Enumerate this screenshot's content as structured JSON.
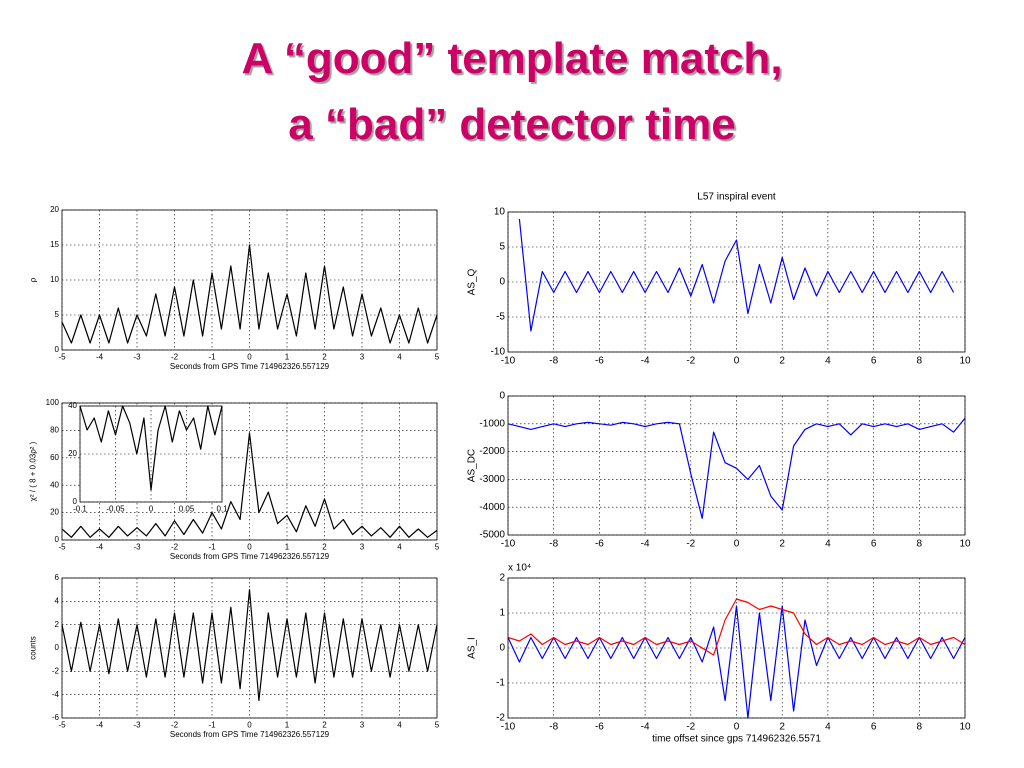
{
  "title": [
    "A “good” template match,",
    "a “bad” detector time"
  ],
  "chart_data": [
    {
      "type": "line",
      "xlabel": "Seconds from GPS Time 714962326.557129",
      "ylabel": "ρ",
      "xlim": [
        -5,
        5
      ],
      "xticks": [
        -5,
        -4,
        -3,
        -2,
        -1,
        0,
        1,
        2,
        3,
        4,
        5
      ],
      "ylim": [
        0,
        20
      ],
      "yticks": [
        0,
        5,
        10,
        15,
        20
      ],
      "grid": true,
      "x": [
        -5,
        -4.75,
        -4.5,
        -4.25,
        -4,
        -3.75,
        -3.5,
        -3.25,
        -3,
        -2.75,
        -2.5,
        -2.25,
        -2,
        -1.75,
        -1.5,
        -1.25,
        -1,
        -0.75,
        -0.5,
        -0.25,
        0,
        0.25,
        0.5,
        0.75,
        1,
        1.25,
        1.5,
        1.75,
        2,
        2.25,
        2.5,
        2.75,
        3,
        3.25,
        3.5,
        3.75,
        4,
        4.25,
        4.5,
        4.75,
        5
      ],
      "series": [
        {
          "color": "#000000",
          "values": [
            4,
            1,
            5,
            1,
            5,
            1,
            6,
            1,
            5,
            2,
            8,
            2,
            9,
            2,
            10,
            2,
            11,
            3,
            12,
            3,
            15,
            3,
            11,
            3,
            8,
            2,
            11,
            3,
            12,
            3,
            9,
            2,
            8,
            2,
            6,
            1,
            5,
            1,
            6,
            1,
            5
          ]
        }
      ]
    },
    {
      "type": "line",
      "xlabel": "Seconds from GPS Time 714962326.557129",
      "ylabel": "χ² / ( 8 + 0.03ρ² )",
      "xlim": [
        -5,
        5
      ],
      "xticks": [
        -5,
        -4,
        -3,
        -2,
        -1,
        0,
        1,
        2,
        3,
        4,
        5
      ],
      "ylim": [
        0,
        100
      ],
      "yticks": [
        0,
        20,
        40,
        60,
        80,
        100
      ],
      "grid": true,
      "x": [
        -5,
        -4.75,
        -4.5,
        -4.25,
        -4,
        -3.75,
        -3.5,
        -3.25,
        -3,
        -2.75,
        -2.5,
        -2.25,
        -2,
        -1.75,
        -1.5,
        -1.25,
        -1,
        -0.75,
        -0.5,
        -0.25,
        0,
        0.25,
        0.5,
        0.75,
        1,
        1.25,
        1.5,
        1.75,
        2,
        2.25,
        2.5,
        2.75,
        3,
        3.25,
        3.5,
        3.75,
        4,
        4.25,
        4.5,
        4.75,
        5
      ],
      "series": [
        {
          "color": "#000000",
          "values": [
            8,
            2,
            10,
            2,
            8,
            2,
            10,
            3,
            9,
            3,
            12,
            3,
            14,
            4,
            15,
            5,
            20,
            8,
            28,
            15,
            78,
            20,
            35,
            12,
            18,
            6,
            25,
            10,
            30,
            8,
            15,
            4,
            10,
            3,
            9,
            2,
            10,
            2,
            8,
            2,
            7
          ]
        }
      ]
    },
    {
      "type": "line",
      "xlim": [
        -0.1,
        0.1
      ],
      "xticks": [
        -0.1,
        -0.05,
        0,
        0.05,
        0.1
      ],
      "ylim": [
        0,
        40
      ],
      "yticks": [
        0,
        20,
        40
      ],
      "grid": true,
      "x": [
        -0.1,
        -0.09,
        -0.08,
        -0.07,
        -0.06,
        -0.05,
        -0.04,
        -0.03,
        -0.02,
        -0.01,
        0,
        0.01,
        0.02,
        0.03,
        0.04,
        0.05,
        0.06,
        0.07,
        0.08,
        0.09,
        0.1
      ],
      "series": [
        {
          "color": "#000000",
          "values": [
            40,
            30,
            35,
            25,
            38,
            28,
            40,
            33,
            20,
            35,
            5,
            30,
            40,
            25,
            38,
            30,
            35,
            22,
            40,
            28,
            40
          ]
        }
      ]
    },
    {
      "type": "line",
      "xlabel": "Seconds from GPS Time 714962326.557129",
      "ylabel": "counts",
      "xlim": [
        -5,
        5
      ],
      "xticks": [
        -5,
        -4,
        -3,
        -2,
        -1,
        0,
        1,
        2,
        3,
        4,
        5
      ],
      "ylim": [
        -6,
        6
      ],
      "yticks": [
        -6,
        -4,
        -2,
        0,
        2,
        4,
        6
      ],
      "grid": true,
      "x": [
        -5,
        -4.75,
        -4.5,
        -4.25,
        -4,
        -3.75,
        -3.5,
        -3.25,
        -3,
        -2.75,
        -2.5,
        -2.25,
        -2,
        -1.75,
        -1.5,
        -1.25,
        -1,
        -0.75,
        -0.5,
        -0.25,
        0,
        0.25,
        0.5,
        0.75,
        1,
        1.25,
        1.5,
        1.75,
        2,
        2.25,
        2.5,
        2.75,
        3,
        3.25,
        3.5,
        3.75,
        4,
        4.25,
        4.5,
        4.75,
        5
      ],
      "series": [
        {
          "color": "#000000",
          "values": [
            2,
            -2,
            2.2,
            -2,
            2,
            -2.2,
            2.5,
            -2,
            2,
            -2.5,
            2.5,
            -2.5,
            3,
            -2.5,
            3,
            -3,
            3,
            -3,
            3.5,
            -3.5,
            5,
            -4.5,
            3,
            -2.5,
            2.5,
            -2.5,
            3,
            -3,
            3,
            -2.5,
            2.5,
            -2.5,
            2.5,
            -2,
            2,
            -2.5,
            2,
            -2,
            2,
            -2,
            2
          ]
        }
      ]
    },
    {
      "type": "line",
      "title": "L57 inspiral event",
      "ylabel": "AS_Q",
      "xlim": [
        -10,
        10
      ],
      "xticks": [
        -10,
        -8,
        -6,
        -4,
        -2,
        0,
        2,
        4,
        6,
        8,
        10
      ],
      "ylim": [
        -10,
        10
      ],
      "yticks": [
        -10,
        -5,
        0,
        5,
        10
      ],
      "grid": true,
      "x": [
        -9.5,
        -9,
        -8.5,
        -8,
        -7.5,
        -7,
        -6.5,
        -6,
        -5.5,
        -5,
        -4.5,
        -4,
        -3.5,
        -3,
        -2.5,
        -2,
        -1.5,
        -1,
        -0.5,
        0,
        0.5,
        1,
        1.5,
        2,
        2.5,
        3,
        3.5,
        4,
        4.5,
        5,
        5.5,
        6,
        6.5,
        7,
        7.5,
        8,
        8.5,
        9,
        9.5
      ],
      "series": [
        {
          "color": "#0000ff",
          "values": [
            9,
            -7,
            1.5,
            -1.5,
            1.5,
            -1.5,
            1.5,
            -1.5,
            1.5,
            -1.5,
            1.5,
            -1.5,
            1.5,
            -1.5,
            2,
            -2,
            2.5,
            -3,
            3,
            6,
            -4.5,
            2.5,
            -3,
            3.5,
            -2.5,
            2,
            -2,
            1.5,
            -1.5,
            1.5,
            -1.5,
            1.5,
            -1.5,
            1.5,
            -1.5,
            1.5,
            -1.5,
            1.5,
            -1.5
          ]
        }
      ]
    },
    {
      "type": "line",
      "ylabel": "AS_DC",
      "xlim": [
        -10,
        10
      ],
      "xticks": [
        -10,
        -8,
        -6,
        -4,
        -2,
        0,
        2,
        4,
        6,
        8,
        10
      ],
      "ylim": [
        -5000,
        0
      ],
      "yticks": [
        -5000,
        -4000,
        -3000,
        -2000,
        -1000,
        0
      ],
      "grid": true,
      "x": [
        -10,
        -9.5,
        -9,
        -8.5,
        -8,
        -7.5,
        -7,
        -6.5,
        -6,
        -5.5,
        -5,
        -4.5,
        -4,
        -3.5,
        -3,
        -2.5,
        -2,
        -1.5,
        -1,
        -0.5,
        0,
        0.5,
        1,
        1.5,
        2,
        2.5,
        3,
        3.5,
        4,
        4.5,
        5,
        5.5,
        6,
        6.5,
        7,
        7.5,
        8,
        8.5,
        9,
        9.5,
        10
      ],
      "series": [
        {
          "color": "#0000ff",
          "values": [
            -1000,
            -1100,
            -1200,
            -1100,
            -1000,
            -1100,
            -1000,
            -950,
            -1000,
            -1050,
            -950,
            -1000,
            -1100,
            -1000,
            -950,
            -1000,
            -2800,
            -4400,
            -1300,
            -2400,
            -2600,
            -3000,
            -2500,
            -3600,
            -4100,
            -1800,
            -1200,
            -1000,
            -1100,
            -1000,
            -1400,
            -1000,
            -1100,
            -1000,
            -1100,
            -1000,
            -1200,
            -1100,
            -1000,
            -1300,
            -800
          ]
        }
      ]
    },
    {
      "type": "line",
      "ylabel": "AS_I",
      "y_multiplier": "x 10⁴",
      "xlabel": "time offset since gps 714962326.5571",
      "xlim": [
        -10,
        10
      ],
      "xticks": [
        -10,
        -8,
        -6,
        -4,
        -2,
        0,
        2,
        4,
        6,
        8,
        10
      ],
      "ylim": [
        -2,
        2
      ],
      "yticks": [
        -2,
        -1,
        0,
        1,
        2
      ],
      "grid": true,
      "x": [
        -10,
        -9.5,
        -9,
        -8.5,
        -8,
        -7.5,
        -7,
        -6.5,
        -6,
        -5.5,
        -5,
        -4.5,
        -4,
        -3.5,
        -3,
        -2.5,
        -2,
        -1.5,
        -1,
        -0.5,
        0,
        0.5,
        1,
        1.5,
        2,
        2.5,
        3,
        3.5,
        4,
        4.5,
        5,
        5.5,
        6,
        6.5,
        7,
        7.5,
        8,
        8.5,
        9,
        9.5,
        10
      ],
      "series": [
        {
          "color": "#0000ff",
          "values": [
            0.3,
            -0.4,
            0.3,
            -0.3,
            0.3,
            -0.3,
            0.3,
            -0.3,
            0.3,
            -0.3,
            0.3,
            -0.3,
            0.3,
            -0.3,
            0.3,
            -0.3,
            0.3,
            -0.4,
            0.6,
            -1.5,
            1.2,
            -2,
            1,
            -1.5,
            1.2,
            -1.8,
            0.8,
            -0.5,
            0.3,
            -0.3,
            0.3,
            -0.3,
            0.3,
            -0.3,
            0.3,
            -0.3,
            0.3,
            -0.3,
            0.3,
            -0.3,
            0.3
          ]
        },
        {
          "color": "#ff0000",
          "values": [
            0.3,
            0.2,
            0.4,
            0.1,
            0.3,
            0.1,
            0.2,
            0.1,
            0.3,
            0.1,
            0.2,
            0.1,
            0.3,
            0.1,
            0.2,
            0.1,
            0.2,
            0,
            -0.2,
            0.8,
            1.4,
            1.3,
            1.1,
            1.2,
            1.1,
            1.0,
            0.4,
            0.1,
            0.3,
            0.1,
            0.2,
            0.1,
            0.3,
            0.1,
            0.2,
            0.1,
            0.3,
            0.1,
            0.2,
            0.3,
            0.1
          ]
        }
      ]
    }
  ]
}
